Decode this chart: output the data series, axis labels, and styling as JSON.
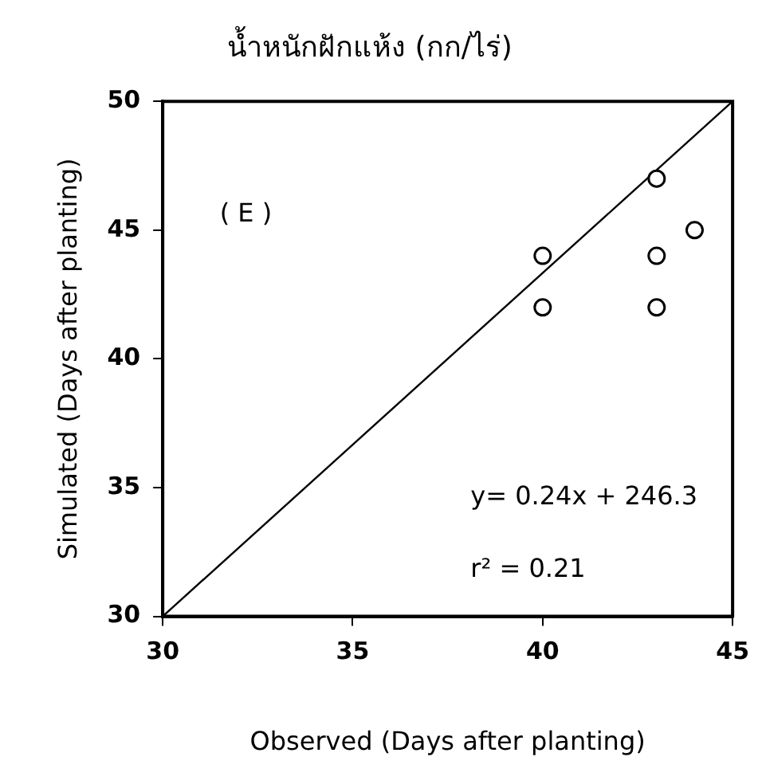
{
  "chart_data": {
    "type": "scatter",
    "title": "น้ำหนักฝักแห้ง (กก/ไร่)",
    "xlabel": "Observed (Days after planting)",
    "ylabel": "Simulated (Days after planting)",
    "x": [
      40,
      40,
      43,
      43,
      43,
      44
    ],
    "series": [
      {
        "type": "scatter",
        "color": "#000000",
        "values": [
          44,
          42,
          47,
          44,
          42,
          45
        ],
        "marker": "circle"
      },
      {
        "type": "line",
        "color": "#000000",
        "x": [
          30,
          45
        ],
        "values": [
          30,
          50
        ],
        "marker": "none"
      }
    ],
    "xlim": [
      30,
      45
    ],
    "xticks": [
      30,
      35,
      40,
      45
    ],
    "ylim": [
      30,
      50
    ],
    "yticks": [
      30,
      35,
      40,
      45,
      50
    ],
    "grid": false,
    "legend": false,
    "annotations": [
      "( E )",
      "y= 0.24x + 246.3",
      "r² = 0.21"
    ]
  }
}
